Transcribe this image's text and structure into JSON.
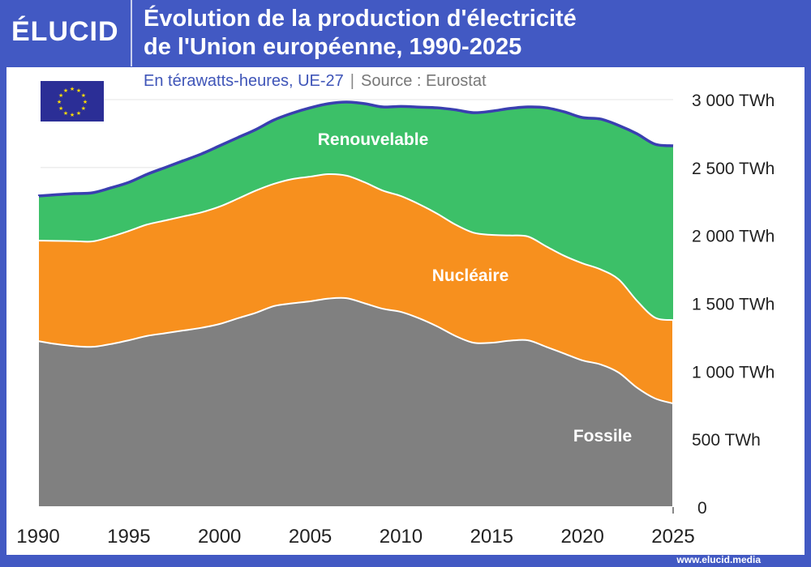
{
  "header": {
    "logo": "ÉLUCID",
    "title_line1": "Évolution de la production d'électricité",
    "title_line2": "de l'Union européenne, 1990-2025",
    "subtitle": "En térawatts-heures, UE-27",
    "source": "Source : Eurostat"
  },
  "footer": {
    "url": "www.elucid.media"
  },
  "colors": {
    "frame": "#4259c3",
    "fossile": "#808080",
    "nucleaire": "#f7901e",
    "renouvelable": "#3cc068",
    "total_line": "#3a3fb0"
  },
  "chart_data": {
    "type": "area",
    "stacked": true,
    "x": [
      1990,
      1991,
      1992,
      1993,
      1994,
      1995,
      1996,
      1997,
      1998,
      1999,
      2000,
      2001,
      2002,
      2003,
      2004,
      2005,
      2006,
      2007,
      2008,
      2009,
      2010,
      2011,
      2012,
      2013,
      2014,
      2015,
      2016,
      2017,
      2018,
      2019,
      2020,
      2021,
      2022,
      2023,
      2024,
      2025
    ],
    "series": [
      {
        "name": "Fossile",
        "values": [
          1222,
          1200,
          1185,
          1180,
          1200,
          1228,
          1260,
          1280,
          1300,
          1320,
          1348,
          1390,
          1430,
          1480,
          1500,
          1515,
          1535,
          1538,
          1500,
          1460,
          1437,
          1390,
          1330,
          1260,
          1210,
          1210,
          1225,
          1228,
          1180,
          1130,
          1080,
          1050,
          990,
          880,
          800,
          763
        ]
      },
      {
        "name": "Nucléaire",
        "values": [
          740,
          760,
          773,
          776,
          790,
          805,
          820,
          830,
          840,
          850,
          864,
          880,
          900,
          900,
          915,
          918,
          916,
          902,
          891,
          870,
          853,
          840,
          830,
          820,
          810,
          794,
          775,
          764,
          740,
          720,
          715,
          700,
          686,
          640,
          595,
          614
        ]
      },
      {
        "name": "Renouvelable",
        "values": [
          328,
          340,
          350,
          358,
          360,
          358,
          370,
          390,
          410,
          430,
          448,
          450,
          450,
          470,
          485,
          507,
          519,
          542,
          579,
          616,
          660,
          715,
          780,
          845,
          884,
          911,
          935,
          954,
          1020,
          1060,
          1073,
          1107,
          1134,
          1229,
          1277,
          1283
        ]
      }
    ],
    "xlim": [
      1990,
      2025
    ],
    "ylim": [
      0,
      3000
    ],
    "x_ticks": [
      "1990",
      "1995",
      "2000",
      "2005",
      "2010",
      "2015",
      "2020",
      "2025"
    ],
    "y_ticks": [
      "0",
      "500 TWh",
      "1 000 TWh",
      "1 500 TWh",
      "2 000 TWh",
      "2 500 TWh",
      "3 000 TWh"
    ],
    "y_axis_position": "right",
    "grid": true
  }
}
